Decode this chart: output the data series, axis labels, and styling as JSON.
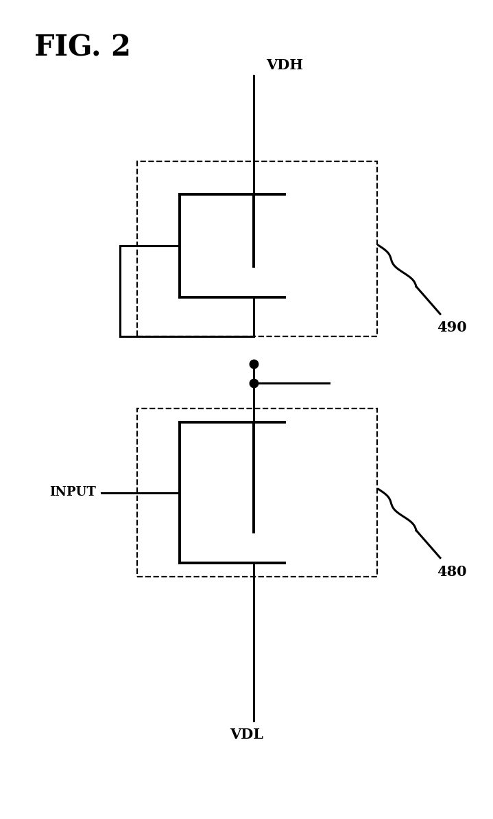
{
  "bg_color": "#ffffff",
  "line_color": "#000000",
  "fig_title": "FIG. 2",
  "vdh_label": "VDH",
  "vdl_label": "VDL",
  "input_label": "INPUT",
  "label_490": "490",
  "label_480": "480",
  "lw_main": 2.2,
  "lw_thick": 2.8,
  "lw_dash": 1.6,
  "dot_size": 9,
  "fig_title_fontsize": 30,
  "label_fontsize": 15,
  "input_fontsize": 13
}
